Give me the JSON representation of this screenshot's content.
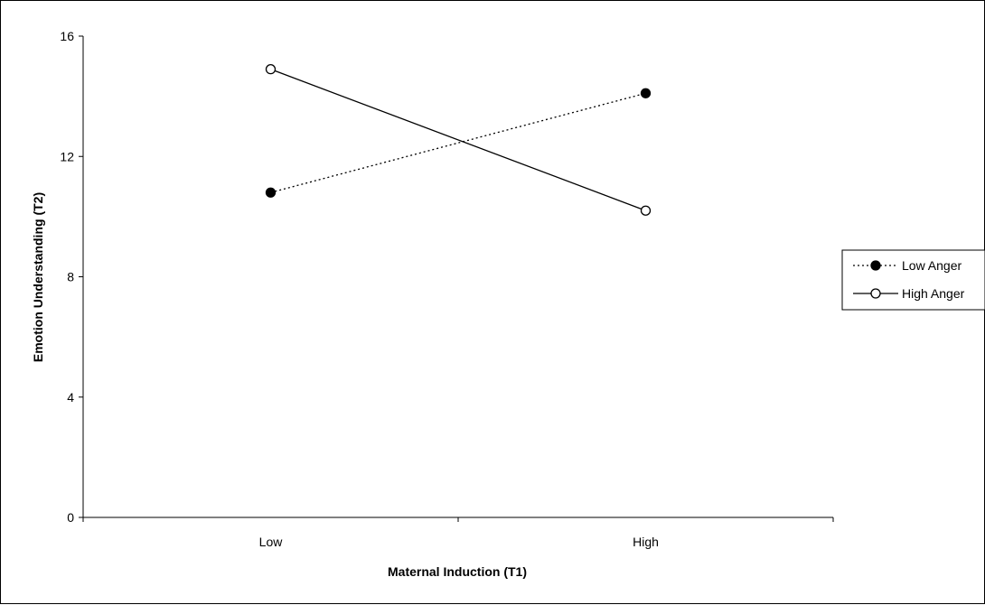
{
  "chart_data": {
    "type": "line",
    "title": "",
    "xlabel": "Maternal Induction (T1)",
    "ylabel": "Emotion Understanding (T2)",
    "categories": [
      "Low",
      "High"
    ],
    "ylim": [
      0,
      16
    ],
    "yticks": [
      "0",
      "4",
      "8",
      "12",
      "16"
    ],
    "grid": false,
    "legend_position": "right",
    "series": [
      {
        "name": "Low Anger",
        "values": [
          10.8,
          14.1
        ],
        "line_style": "dotted",
        "marker": "filled-circle",
        "color": "#000000"
      },
      {
        "name": "High Anger",
        "values": [
          14.9,
          10.2
        ],
        "line_style": "solid",
        "marker": "open-circle",
        "color": "#000000"
      }
    ]
  }
}
